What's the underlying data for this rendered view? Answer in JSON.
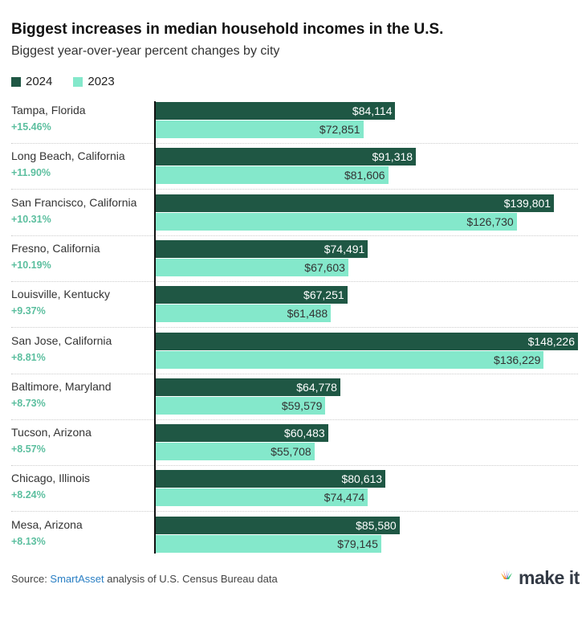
{
  "chart_data": {
    "type": "bar",
    "title": "Biggest increases in median household incomes in the U.S.",
    "subtitle": "Biggest year-over-year percent changes by city",
    "legend": [
      {
        "name": "2024",
        "color": "#1f5744"
      },
      {
        "name": "2023",
        "color": "#84e8cb"
      }
    ],
    "categories": [
      "Tampa, Florida",
      "Long Beach, California",
      "San Francisco, California",
      "Fresno, California",
      "Louisville, Kentucky",
      "San Jose, California",
      "Baltimore, Maryland",
      "Tucson, Arizona",
      "Chicago, Illinois",
      "Mesa, Arizona"
    ],
    "changes": [
      "+15.46%",
      "+11.90%",
      "+10.31%",
      "+10.19%",
      "+9.37%",
      "+8.81%",
      "+8.73%",
      "+8.57%",
      "+8.24%",
      "+8.13%"
    ],
    "series": [
      {
        "name": "2024",
        "values": [
          84114,
          91318,
          139801,
          74491,
          67251,
          148226,
          64778,
          60483,
          80613,
          85580
        ]
      },
      {
        "name": "2023",
        "values": [
          72851,
          81606,
          126730,
          67603,
          61488,
          136229,
          59579,
          55708,
          74474,
          79145
        ]
      }
    ],
    "xlim": [
      0,
      148226
    ]
  },
  "source": {
    "prefix": "Source: ",
    "link": "SmartAsset",
    "suffix": " analysis of U.S. Census Bureau data"
  },
  "logo": {
    "brand": "CNBC",
    "text": "make it"
  }
}
